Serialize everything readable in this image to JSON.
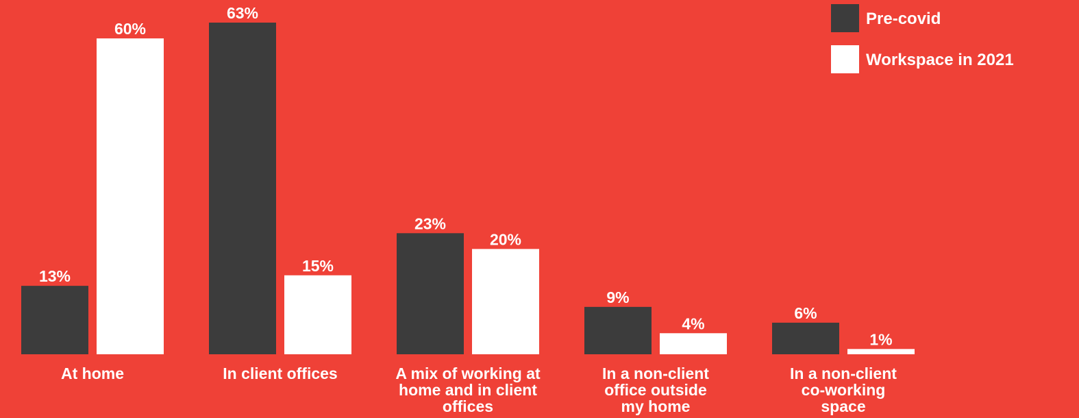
{
  "chart_data": {
    "type": "bar",
    "categories": [
      "At home",
      "In client offices",
      "A mix of working at home and in client offices",
      "In a non-client office outside my home",
      "In a non-client co-working space"
    ],
    "category_lines": [
      [
        "At home"
      ],
      [
        "In client offices"
      ],
      [
        "A mix of working at",
        "home and in client",
        "offices"
      ],
      [
        "In a non-client",
        "office outside",
        "my home"
      ],
      [
        "In a non-client",
        "co-working",
        "space"
      ]
    ],
    "series": [
      {
        "name": "Pre-covid",
        "values": [
          13,
          63,
          23,
          9,
          6
        ],
        "labels": [
          "13%",
          "63%",
          "23%",
          "9%",
          "6%"
        ]
      },
      {
        "name": "Workspace in 2021",
        "values": [
          60,
          15,
          20,
          4,
          1
        ],
        "labels": [
          "60%",
          "15%",
          "20%",
          "4%",
          "1%"
        ]
      }
    ],
    "ylim": [
      0,
      63
    ],
    "grid": false,
    "legend_position": "top-right",
    "unit": "%"
  },
  "colors": {
    "background": "#EF4137",
    "series": [
      "#3C3C3C",
      "#FFFFFF"
    ],
    "text": "#FFFFFF"
  }
}
